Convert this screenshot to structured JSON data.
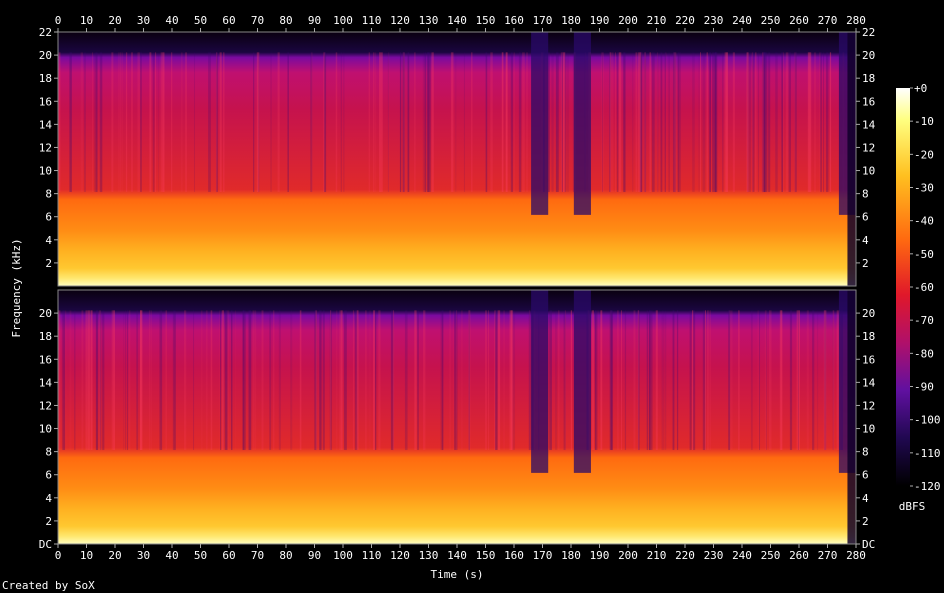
{
  "chart_data": {
    "type": "heatmap",
    "title": "",
    "xlabel": "Time (s)",
    "ylabel": "Frequency (kHz)",
    "credit": "Created by SoX",
    "colorbar_label": "dBFS",
    "channels": 2,
    "xlim": [
      0,
      280
    ],
    "ylim": [
      0,
      22
    ],
    "x_ticks": [
      "0",
      "10",
      "20",
      "30",
      "40",
      "50",
      "60",
      "70",
      "80",
      "90",
      "100",
      "110",
      "120",
      "130",
      "140",
      "150",
      "160",
      "170",
      "180",
      "190",
      "200",
      "210",
      "220",
      "230",
      "240",
      "250",
      "260",
      "270",
      "280"
    ],
    "y_ticks_top": [
      "2",
      "4",
      "6",
      "8",
      "10",
      "12",
      "14",
      "16",
      "18",
      "20",
      "22"
    ],
    "y_ticks_bottom": [
      "DC",
      "2",
      "4",
      "6",
      "8",
      "10",
      "12",
      "14",
      "16",
      "18",
      "20"
    ],
    "colorbar_ticks": [
      "+0",
      "-10",
      "-20",
      "-30",
      "-40",
      "-50",
      "-60",
      "-70",
      "-80",
      "-90",
      "-100",
      "-110",
      "-120"
    ],
    "colorbar_range": [
      -120,
      0
    ],
    "colors": {
      "background": "#000000",
      "floor": "#0a0010",
      "low": "#3c0a78",
      "mid": "#d4124a",
      "hot": "#ff7a10",
      "peak": "#ffff90"
    },
    "energy_bands_khz": [
      {
        "from": 0,
        "to": 1.5,
        "level_dbfs": -10
      },
      {
        "from": 1.5,
        "to": 5,
        "level_dbfs": -30
      },
      {
        "from": 5,
        "to": 16,
        "level_dbfs": -55
      },
      {
        "from": 16,
        "to": 20,
        "level_dbfs": -65
      },
      {
        "from": 20,
        "to": 22,
        "level_dbfs": -120
      }
    ],
    "quiet_sections_s": [
      [
        166,
        172
      ],
      [
        181,
        187
      ],
      [
        274,
        280
      ]
    ]
  }
}
